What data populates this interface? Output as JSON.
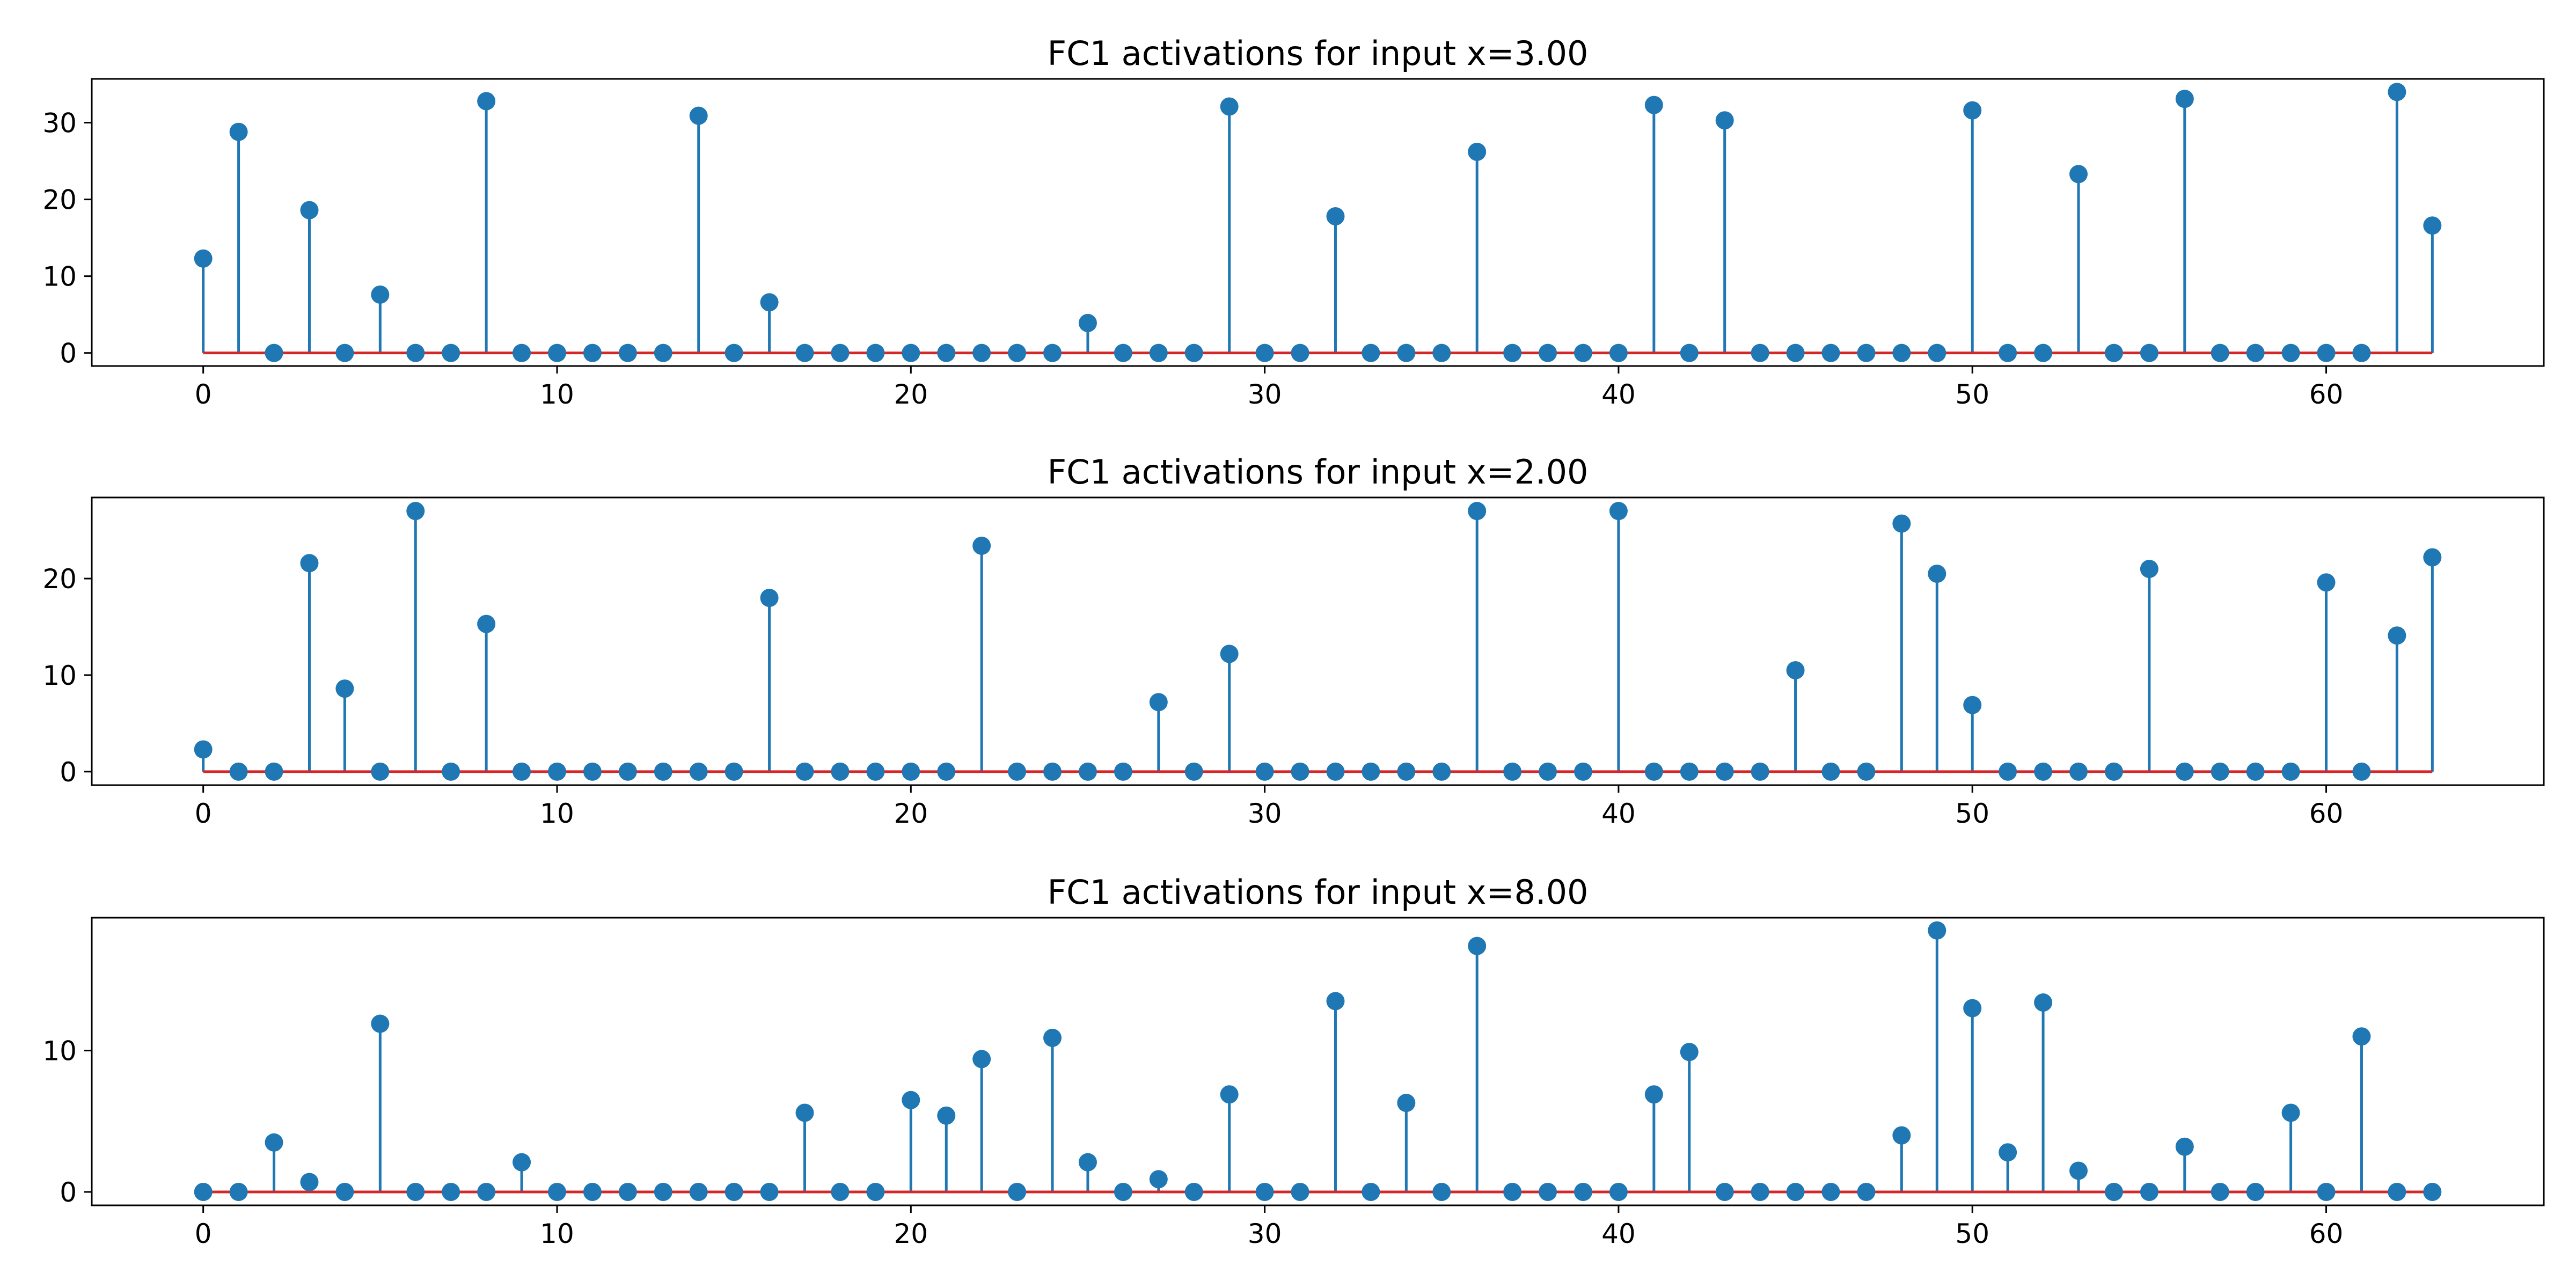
{
  "chart_data": [
    {
      "type": "stem",
      "title": "FC1 activations for input x=3.00",
      "xlabel": "",
      "ylabel": "",
      "xlim": [
        -3.15,
        66.15
      ],
      "ylim": [
        -1.7,
        35.7
      ],
      "x_ticks": [
        0,
        10,
        20,
        30,
        40,
        50,
        60
      ],
      "y_ticks": [
        0,
        10,
        20,
        30
      ],
      "grid": false,
      "colors": {
        "stem": "#1f77b4",
        "marker": "#1f77b4",
        "baseline": "#d62728"
      },
      "x": [
        0,
        1,
        2,
        3,
        4,
        5,
        6,
        7,
        8,
        9,
        10,
        11,
        12,
        13,
        14,
        15,
        16,
        17,
        18,
        19,
        20,
        21,
        22,
        23,
        24,
        25,
        26,
        27,
        28,
        29,
        30,
        31,
        32,
        33,
        34,
        35,
        36,
        37,
        38,
        39,
        40,
        41,
        42,
        43,
        44,
        45,
        46,
        47,
        48,
        49,
        50,
        51,
        52,
        53,
        54,
        55,
        56,
        57,
        58,
        59,
        60,
        61,
        62,
        63
      ],
      "values": [
        12.3,
        28.8,
        0,
        18.6,
        0,
        7.6,
        0,
        0,
        32.8,
        0,
        0,
        0,
        0,
        0,
        30.9,
        0,
        6.6,
        0,
        0,
        0,
        0,
        0,
        0,
        0,
        0,
        3.9,
        0,
        0,
        0,
        32.1,
        0,
        0,
        17.8,
        0,
        0,
        0,
        26.2,
        0,
        0,
        0,
        0,
        32.3,
        0,
        30.3,
        0,
        0,
        0,
        0,
        0,
        0,
        31.6,
        0,
        0,
        23.3,
        0,
        0,
        33.1,
        0,
        0,
        0,
        0,
        0,
        34.0,
        16.6
      ]
    },
    {
      "type": "stem",
      "title": "FC1 activations for input x=2.00",
      "xlabel": "",
      "ylabel": "",
      "xlim": [
        -3.15,
        66.15
      ],
      "ylim": [
        -1.4,
        28.4
      ],
      "x_ticks": [
        0,
        10,
        20,
        30,
        40,
        50,
        60
      ],
      "y_ticks": [
        0,
        10,
        20
      ],
      "grid": false,
      "colors": {
        "stem": "#1f77b4",
        "marker": "#1f77b4",
        "baseline": "#d62728"
      },
      "x": [
        0,
        1,
        2,
        3,
        4,
        5,
        6,
        7,
        8,
        9,
        10,
        11,
        12,
        13,
        14,
        15,
        16,
        17,
        18,
        19,
        20,
        21,
        22,
        23,
        24,
        25,
        26,
        27,
        28,
        29,
        30,
        31,
        32,
        33,
        34,
        35,
        36,
        37,
        38,
        39,
        40,
        41,
        42,
        43,
        44,
        45,
        46,
        47,
        48,
        49,
        50,
        51,
        52,
        53,
        54,
        55,
        56,
        57,
        58,
        59,
        60,
        61,
        62,
        63
      ],
      "values": [
        2.3,
        0,
        0,
        21.6,
        8.6,
        0,
        27.0,
        0,
        15.3,
        0,
        0,
        0,
        0,
        0,
        0,
        0,
        18.0,
        0,
        0,
        0,
        0,
        0,
        23.4,
        0,
        0,
        0,
        0,
        7.2,
        0,
        12.2,
        0,
        0,
        0,
        0,
        0,
        0,
        27.0,
        0,
        0,
        0,
        27.0,
        0,
        0,
        0,
        0,
        10.5,
        0,
        0,
        25.7,
        20.5,
        6.9,
        0,
        0,
        0,
        0,
        21.0,
        0,
        0,
        0,
        0,
        19.6,
        0,
        14.1,
        22.2
      ]
    },
    {
      "type": "stem",
      "title": "FC1 activations for input x=8.00",
      "xlabel": "",
      "ylabel": "",
      "xlim": [
        -3.15,
        66.15
      ],
      "ylim": [
        -0.95,
        19.4
      ],
      "x_ticks": [
        0,
        10,
        20,
        30,
        40,
        50,
        60
      ],
      "y_ticks": [
        0,
        10
      ],
      "grid": false,
      "colors": {
        "stem": "#1f77b4",
        "marker": "#1f77b4",
        "baseline": "#d62728"
      },
      "x": [
        0,
        1,
        2,
        3,
        4,
        5,
        6,
        7,
        8,
        9,
        10,
        11,
        12,
        13,
        14,
        15,
        16,
        17,
        18,
        19,
        20,
        21,
        22,
        23,
        24,
        25,
        26,
        27,
        28,
        29,
        30,
        31,
        32,
        33,
        34,
        35,
        36,
        37,
        38,
        39,
        40,
        41,
        42,
        43,
        44,
        45,
        46,
        47,
        48,
        49,
        50,
        51,
        52,
        53,
        54,
        55,
        56,
        57,
        58,
        59,
        60,
        61,
        62,
        63
      ],
      "values": [
        0,
        0,
        3.5,
        0.7,
        0,
        11.9,
        0,
        0,
        0,
        2.1,
        0,
        0,
        0,
        0,
        0,
        0,
        0,
        5.6,
        0,
        0,
        6.5,
        5.4,
        9.4,
        0,
        10.9,
        2.1,
        0,
        0.9,
        0,
        6.9,
        0,
        0,
        13.5,
        0,
        6.3,
        0,
        17.4,
        0,
        0,
        0,
        0,
        6.9,
        9.9,
        0,
        0,
        0,
        0,
        0,
        4.0,
        18.5,
        13.0,
        2.8,
        13.4,
        1.5,
        0,
        0,
        3.2,
        0,
        0,
        5.6,
        0,
        11.0,
        0,
        0
      ]
    }
  ]
}
